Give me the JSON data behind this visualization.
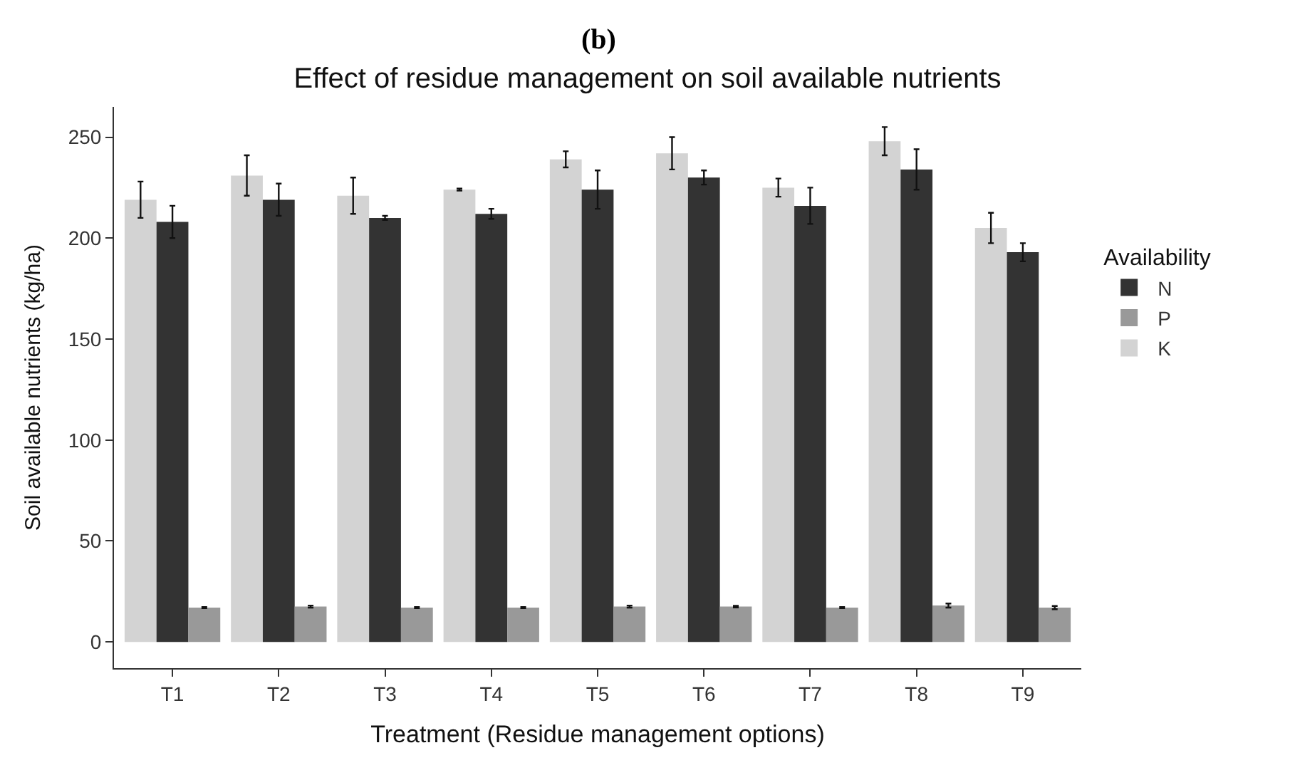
{
  "chart_data": {
    "type": "bar",
    "title": "Effect of residue management on soil available nutrients",
    "xlabel": "Treatment (Residue management options)",
    "ylabel": "Soil available nutrients (kg/ha)",
    "legend_title": "Availability",
    "annotations": [
      "(b)"
    ],
    "categories": [
      "T1",
      "T2",
      "T3",
      "T4",
      "T5",
      "T6",
      "T7",
      "T8",
      "T9"
    ],
    "series": [
      {
        "name": "K",
        "color": "#d3d3d3",
        "values": [
          219,
          231,
          221,
          224,
          239,
          242,
          225,
          248,
          205
        ],
        "errors": [
          9,
          10,
          9,
          0.5,
          4,
          8,
          4.5,
          7,
          7.5
        ]
      },
      {
        "name": "N",
        "color": "#333333",
        "values": [
          208,
          219,
          210,
          212,
          224,
          230,
          216,
          234,
          193
        ],
        "errors": [
          8,
          8,
          1,
          2.5,
          9.5,
          3.5,
          9,
          10,
          4.5
        ]
      },
      {
        "name": "P",
        "color": "#999999",
        "values": [
          17,
          17.5,
          17,
          17,
          17.5,
          17.5,
          17,
          18,
          17
        ],
        "errors": [
          0.3,
          0.5,
          0.3,
          0.3,
          0.5,
          0.4,
          0.3,
          1,
          0.8
        ]
      }
    ],
    "ylim": [
      -13,
      265
    ],
    "yticks": [
      0,
      50,
      100,
      150,
      200,
      250
    ],
    "legend": "right"
  }
}
